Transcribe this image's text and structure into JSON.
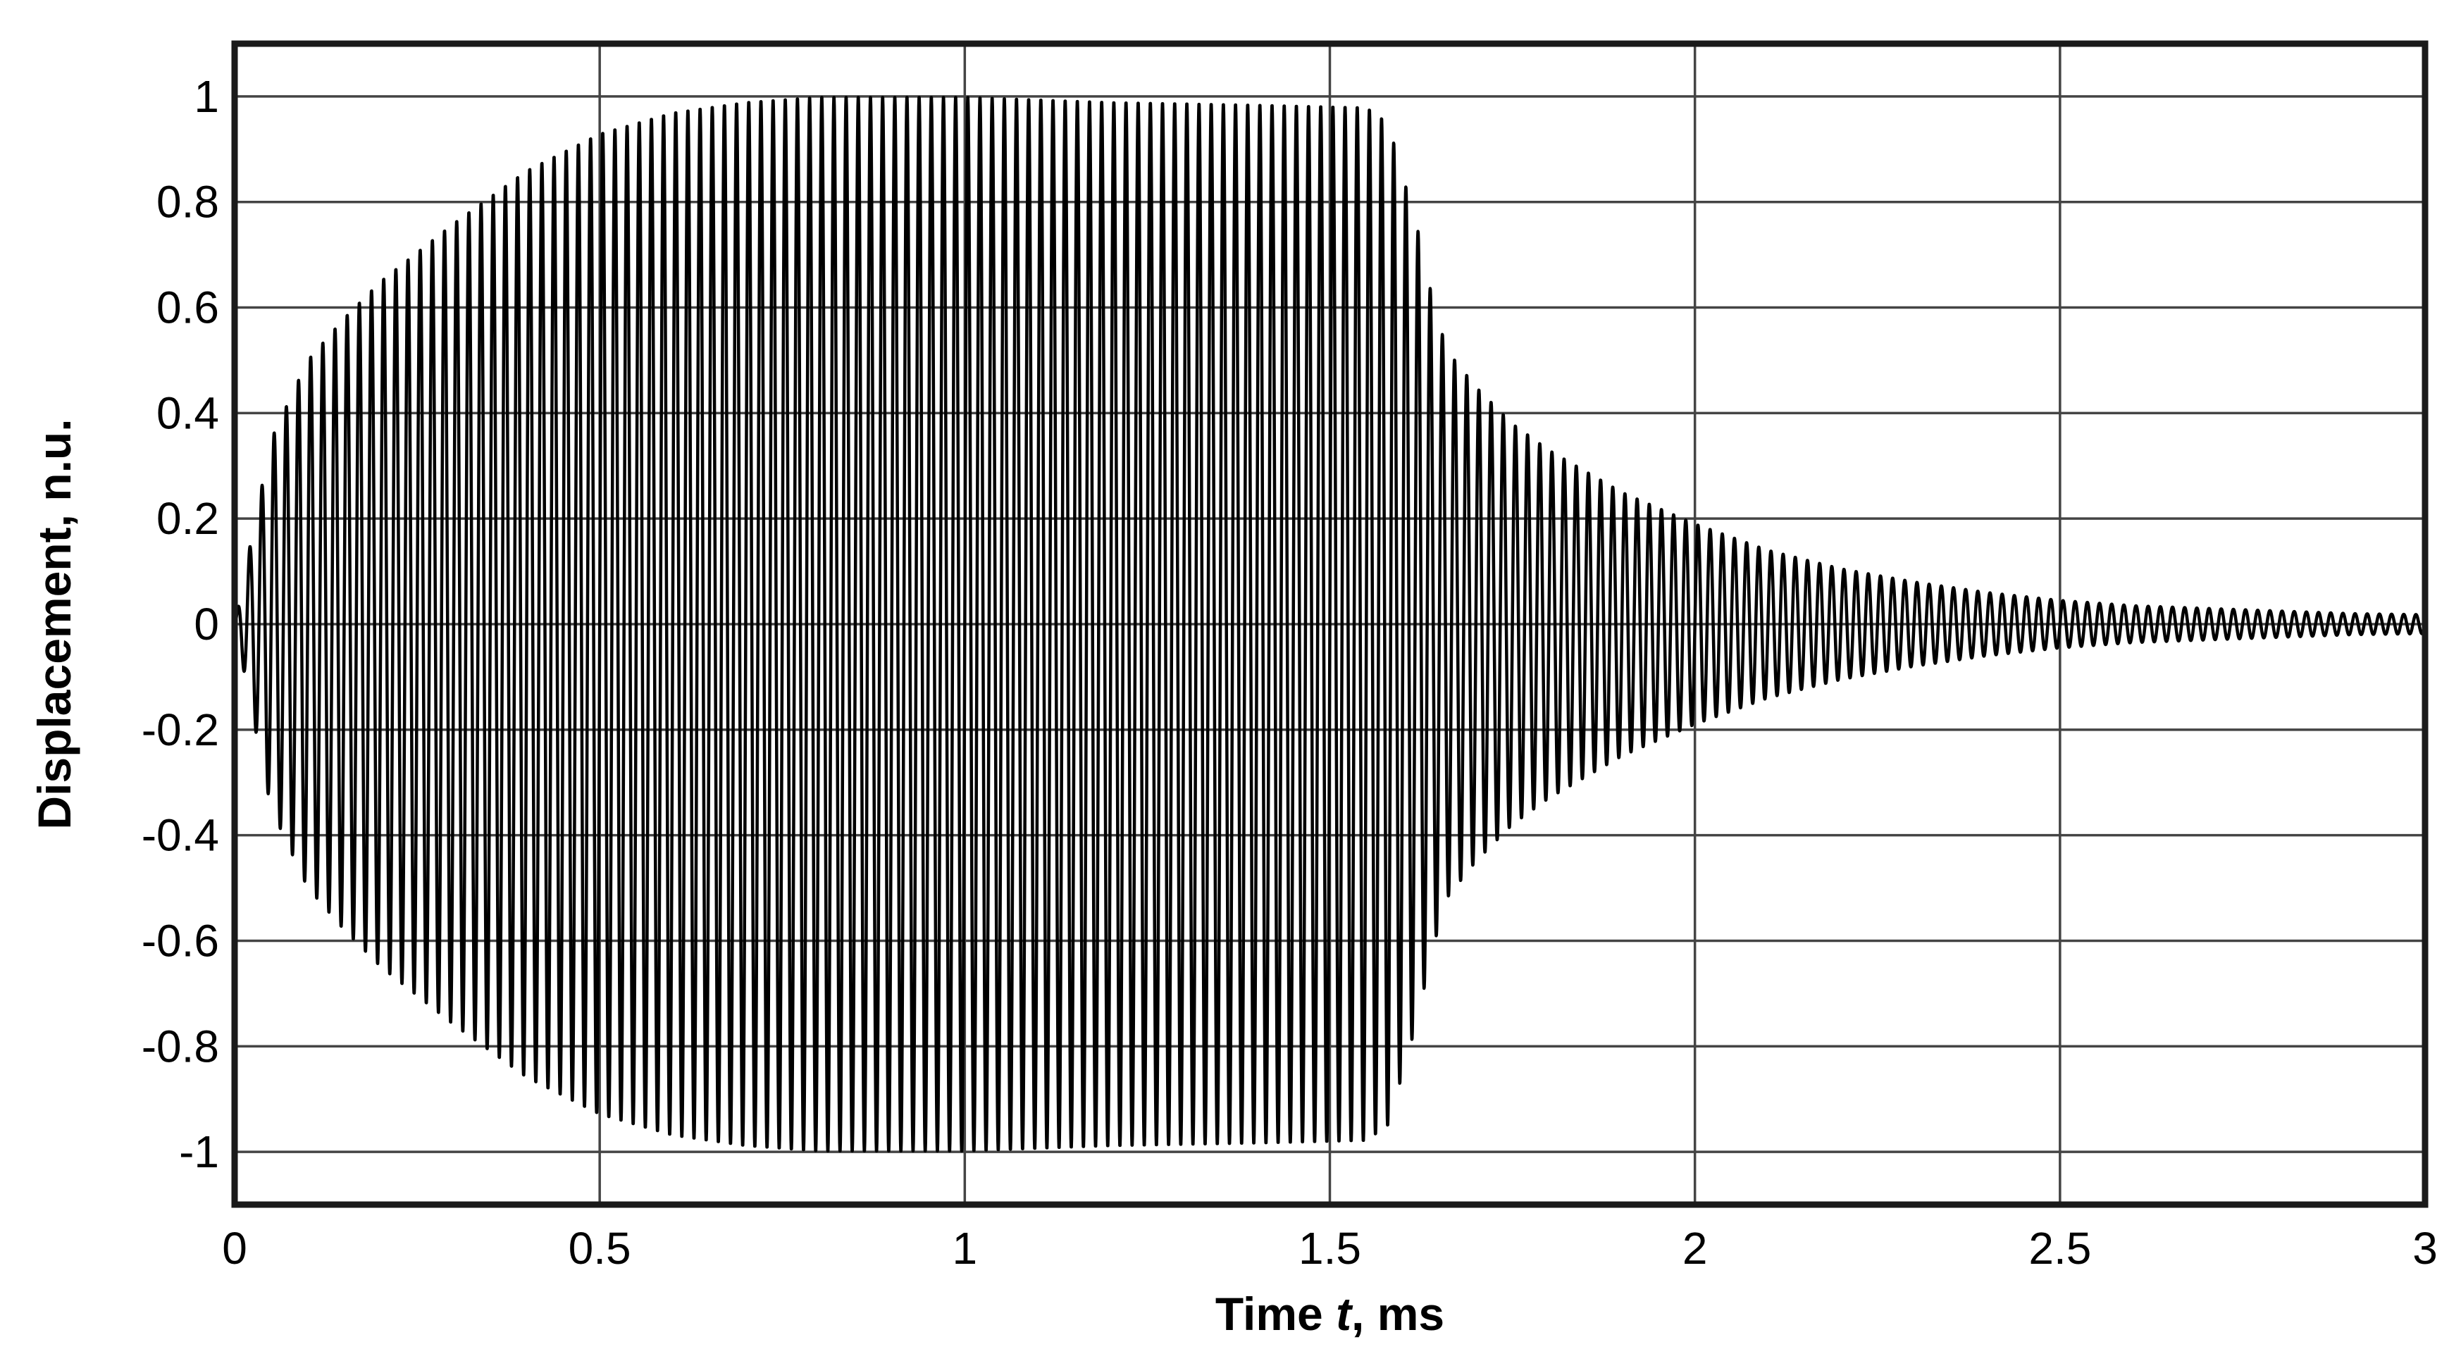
{
  "chart_data": {
    "type": "line",
    "title": "",
    "xlabel_prefix": "Time ",
    "xlabel_var": "t",
    "xlabel_suffix": ", ms",
    "ylabel": "Displacement, n.u.",
    "xlim": [
      0,
      3
    ],
    "ylim": [
      -1.1,
      1.1
    ],
    "grid": true,
    "legend": "none",
    "x_ticks": [
      0,
      0.5,
      1,
      1.5,
      2,
      2.5,
      3
    ],
    "x_tick_labels": [
      "0",
      "0.5",
      "1",
      "1.5",
      "2",
      "2.5",
      "3"
    ],
    "y_ticks": [
      1,
      0.8,
      0.6,
      0.4,
      0.2,
      0,
      -0.2,
      -0.4,
      -0.6,
      -0.8,
      -1
    ],
    "y_tick_labels": [
      "1",
      "0.8",
      "0.6",
      "0.4",
      "0.2",
      "0",
      "-0.2",
      "-0.4",
      "-0.6",
      "-0.8",
      "-1"
    ],
    "series": [
      {
        "color": "#000000",
        "oscillation_frequency_khz": 60,
        "envelope": {
          "t_ms": [
            0,
            0.05,
            0.1,
            0.15,
            0.2,
            0.3,
            0.4,
            0.5,
            0.6,
            0.7,
            0.8,
            1.0,
            1.2,
            1.4,
            1.55,
            1.58,
            1.6,
            1.62,
            1.64,
            1.66,
            1.7,
            1.75,
            1.8,
            1.9,
            2.0,
            2.1,
            2.2,
            2.3,
            2.4,
            2.5,
            2.6,
            2.7,
            2.8,
            2.9,
            3.0
          ],
          "amplitude": [
            0,
            0.35,
            0.5,
            0.58,
            0.65,
            0.76,
            0.86,
            0.93,
            0.97,
            0.99,
            1.0,
            1.0,
            0.99,
            0.985,
            0.98,
            0.95,
            0.85,
            0.75,
            0.62,
            0.52,
            0.45,
            0.38,
            0.33,
            0.25,
            0.19,
            0.14,
            0.105,
            0.08,
            0.06,
            0.045,
            0.035,
            0.03,
            0.025,
            0.02,
            0.018
          ]
        }
      }
    ]
  }
}
